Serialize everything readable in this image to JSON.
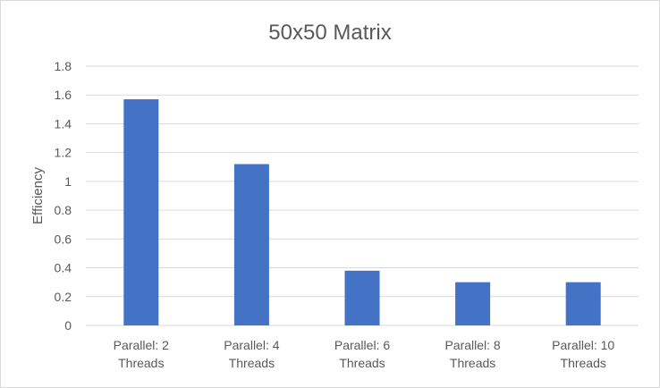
{
  "chart_data": {
    "type": "bar",
    "title": "50x50 Matrix",
    "xlabel": "",
    "ylabel": "Efficiency",
    "categories": [
      [
        "Parallel: 2",
        "Threads"
      ],
      [
        "Parallel: 4",
        "Threads"
      ],
      [
        "Parallel: 6",
        "Threads"
      ],
      [
        "Parallel: 8",
        "Threads"
      ],
      [
        "Parallel: 10",
        "Threads"
      ]
    ],
    "values": [
      1.57,
      1.12,
      0.38,
      0.3,
      0.3
    ],
    "ylim": [
      0,
      1.8
    ],
    "yticks": [
      "0",
      "0.2",
      "0.4",
      "0.6",
      "0.8",
      "1",
      "1.2",
      "1.4",
      "1.6",
      "1.8"
    ],
    "grid": true,
    "bar_color": "#4472C4"
  }
}
